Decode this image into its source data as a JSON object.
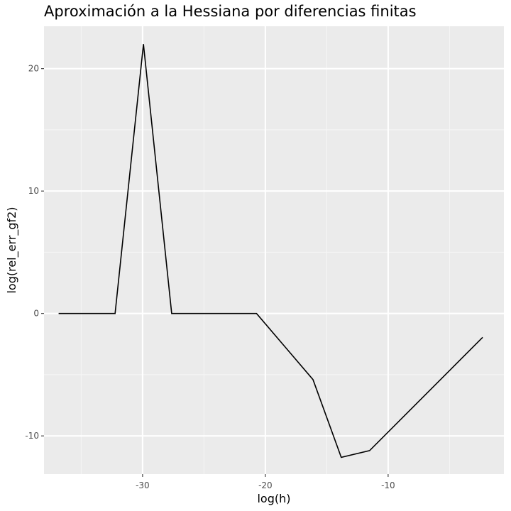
{
  "chart_data": {
    "type": "line",
    "title": "Aproximación a la Hessiana por diferencias finitas",
    "xlabel": "log(h)",
    "ylabel": "log(rel_err_gf2)",
    "xlim": [
      -38.03,
      -0.57
    ],
    "ylim": [
      -13.12,
      23.46
    ],
    "x_ticks": [
      -30,
      -20,
      -10
    ],
    "x_tick_labels": [
      "-30",
      "-20",
      "-10"
    ],
    "x_minor_ticks": [
      -35,
      -25,
      -15,
      -5
    ],
    "y_ticks": [
      -10,
      0,
      10,
      20
    ],
    "y_tick_labels": [
      "-10",
      "0",
      "10",
      "20"
    ],
    "y_minor_ticks": [
      -5,
      5,
      15
    ],
    "grid": true,
    "legend": "none",
    "series": [
      {
        "color": "#000000",
        "x": [
          -36.84,
          -32.24,
          -29.93,
          -27.63,
          -20.72,
          -18.42,
          -16.12,
          -13.82,
          -11.51,
          -2.3
        ],
        "y": [
          0.0,
          0.0,
          22.0,
          0.0,
          0.0,
          -2.7,
          -5.4,
          -11.75,
          -11.2,
          -1.95
        ]
      }
    ],
    "colors": {
      "panel_background": "#ebebeb",
      "grid_major": "#ffffff",
      "grid_minor": "#f5f5f5",
      "tick_text": "#4d4d4d"
    }
  }
}
